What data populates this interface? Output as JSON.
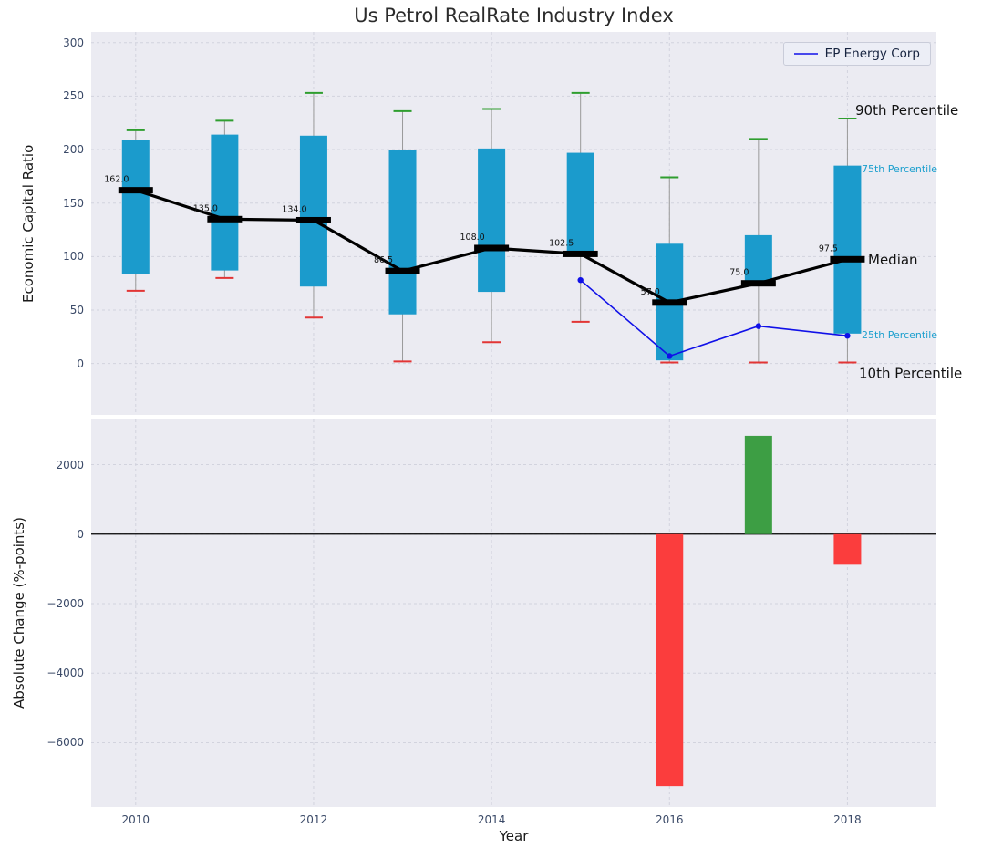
{
  "title": "Us Petrol RealRate Industry Index",
  "legend": {
    "label": "EP Energy Corp"
  },
  "chart_data": [
    {
      "type": "boxplot",
      "title": "Us Petrol RealRate Industry Index",
      "ylabel": "Economic Capital Ratio",
      "ylim": [
        -48,
        310
      ],
      "xlim": [
        2009.5,
        2019
      ],
      "yticks": [
        0,
        50,
        100,
        150,
        200,
        250,
        300
      ],
      "grid_x": [
        2010,
        2012,
        2014,
        2016,
        2018
      ],
      "years": [
        2010,
        2011,
        2012,
        2013,
        2014,
        2015,
        2016,
        2017,
        2018
      ],
      "p90": [
        218,
        227,
        253,
        236,
        238,
        253,
        174,
        210,
        229
      ],
      "q75": [
        209,
        214,
        213,
        200,
        201,
        197,
        112,
        120,
        185
      ],
      "median": [
        162,
        135,
        134,
        86.5,
        108,
        102.5,
        57,
        75,
        97.5
      ],
      "median_labels": [
        "162.0",
        "135.0",
        "134.0",
        "86.5",
        "108.0",
        "102.5",
        "57.0",
        "75.0",
        "97.5"
      ],
      "q25": [
        84,
        87,
        72,
        46,
        67,
        105,
        3,
        73,
        28
      ],
      "p10": [
        68,
        80,
        43,
        2,
        20,
        39,
        1,
        1,
        1
      ],
      "series": [
        {
          "name": "EP Energy Corp",
          "x": [
            2015,
            2016,
            2017,
            2018
          ],
          "y": [
            78,
            7,
            35,
            26
          ],
          "color": "#1010e8"
        }
      ],
      "annotations": [
        {
          "text": "90th Percentile",
          "value": 237,
          "size": 15,
          "color": "#111111"
        },
        {
          "text": "75th Percentile",
          "value": 182,
          "size": 11,
          "color": "#1b9fce"
        },
        {
          "text": "Median",
          "value": 97,
          "size": 15,
          "color": "#111111"
        },
        {
          "text": "25th Percentile",
          "value": 27,
          "size": 11,
          "color": "#1b9fce"
        },
        {
          "text": "10th Percentile",
          "value": -9,
          "size": 15,
          "color": "#111111"
        }
      ],
      "colors": {
        "box": "#1b9bcc",
        "median": "#000000",
        "whisker": "#999999",
        "cap_top": "#2f9e2f",
        "cap_bottom": "#e23535"
      },
      "legend_position": "upper right",
      "grid": true
    },
    {
      "type": "bar",
      "ylabel": "Absolute Change (%-points)",
      "xlabel": "Year",
      "ylim": [
        -7850,
        3300
      ],
      "yticks": [
        2000,
        0,
        -2000,
        -4000,
        -6000
      ],
      "xticks": [
        2010,
        2012,
        2014,
        2016,
        2018
      ],
      "bars": [
        {
          "year": 2016,
          "value": -7250,
          "color": "#fb3d3d"
        },
        {
          "year": 2017,
          "value": 2830,
          "color": "#3d9e44"
        },
        {
          "year": 2018,
          "value": -880,
          "color": "#fb3d3d"
        }
      ],
      "grid": true
    }
  ]
}
